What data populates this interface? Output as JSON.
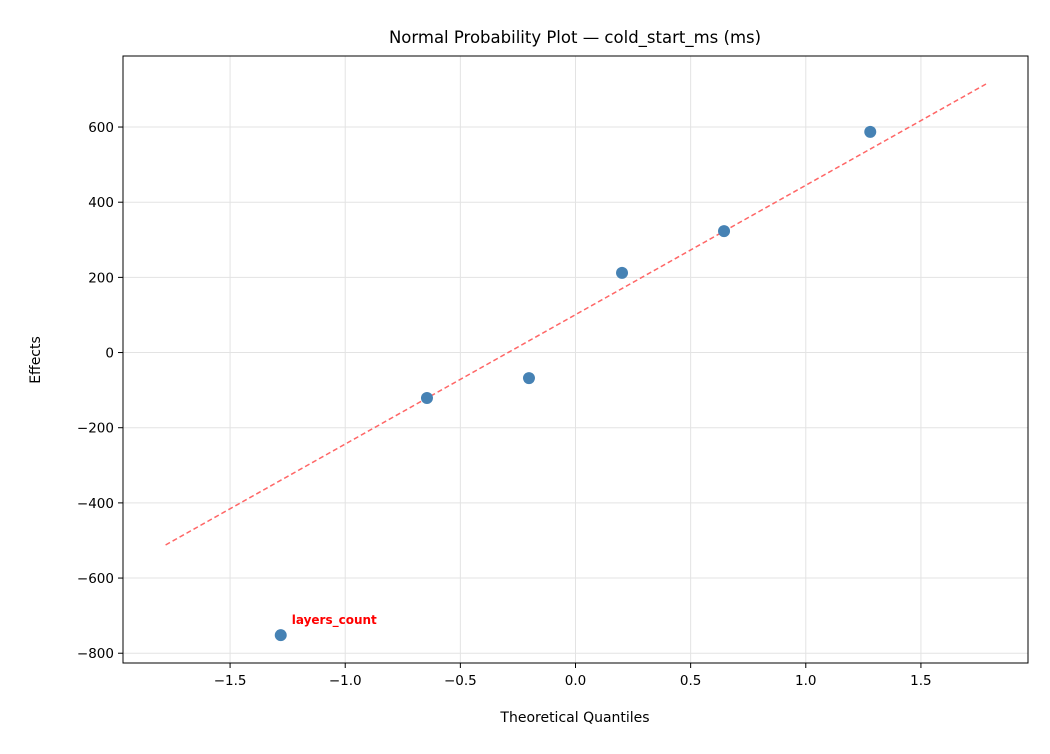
{
  "chart_data": {
    "type": "scatter",
    "title": "Normal Probability Plot — cold_start_ms (ms)",
    "xlabel": "Theoretical Quantiles",
    "ylabel": "Effects",
    "xlim": [
      -1.965,
      1.965
    ],
    "ylim": [
      -826,
      789
    ],
    "xticks": [
      -1.5,
      -1.0,
      -0.5,
      0.0,
      0.5,
      1.0,
      1.5
    ],
    "xtick_labels": [
      "−1.5",
      "−1.0",
      "−0.5",
      "0.0",
      "0.5",
      "1.0",
      "1.5"
    ],
    "yticks": [
      -800,
      -600,
      -400,
      -200,
      0,
      200,
      400,
      600
    ],
    "ytick_labels": [
      "−800",
      "−600",
      "−400",
      "−200",
      "0",
      "200",
      "400",
      "600"
    ],
    "grid": true,
    "points": [
      {
        "x": -1.28,
        "y": -752
      },
      {
        "x": -0.645,
        "y": -121
      },
      {
        "x": -0.202,
        "y": -68
      },
      {
        "x": 0.202,
        "y": 212
      },
      {
        "x": 0.645,
        "y": 323
      },
      {
        "x": 1.28,
        "y": 587
      }
    ],
    "reference_line": {
      "x": [
        -1.78,
        1.79
      ],
      "y": [
        -512,
        717
      ],
      "style": "dashed"
    },
    "annotations": [
      {
        "text": "layers_count",
        "x": -1.28,
        "y": -752,
        "color": "#ff0000"
      }
    ],
    "colors": {
      "points": "#4682b4",
      "line": "#ff6666",
      "annotation": "#ff0000"
    }
  }
}
